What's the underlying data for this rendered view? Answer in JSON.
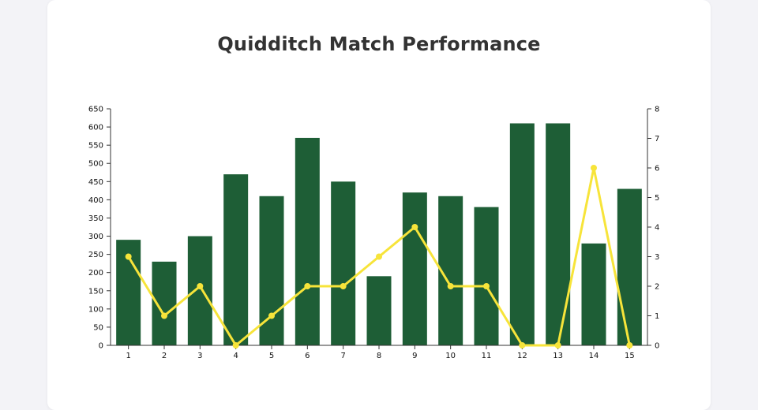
{
  "chart_data": {
    "type": "bar",
    "title": "Quidditch Match Performance",
    "categories": [
      "1",
      "2",
      "3",
      "4",
      "5",
      "6",
      "7",
      "8",
      "9",
      "10",
      "11",
      "12",
      "13",
      "14",
      "15"
    ],
    "series": [
      {
        "type": "bar",
        "axis": "left",
        "color": "#1e5e36",
        "values": [
          290,
          230,
          300,
          470,
          410,
          570,
          450,
          190,
          420,
          410,
          380,
          610,
          610,
          280,
          430
        ]
      },
      {
        "type": "line",
        "axis": "right",
        "color": "#f7e43a",
        "values": [
          3,
          1,
          2,
          0,
          1,
          2,
          2,
          3,
          4,
          2,
          2,
          0,
          0,
          6,
          0
        ]
      }
    ],
    "y_left": {
      "min": 0,
      "max": 650,
      "ticks": [
        "0",
        "50",
        "100",
        "150",
        "200",
        "250",
        "300",
        "350",
        "400",
        "450",
        "500",
        "550",
        "600",
        "650"
      ]
    },
    "y_right": {
      "min": 0,
      "max": 8,
      "ticks": [
        "0",
        "1",
        "2",
        "3",
        "4",
        "5",
        "6",
        "7",
        "8"
      ]
    },
    "grid": false,
    "legend": "none"
  }
}
